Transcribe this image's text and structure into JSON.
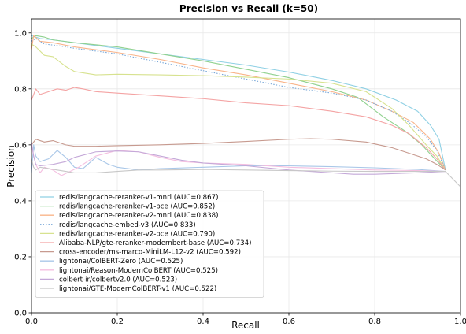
{
  "chart_data": {
    "type": "line",
    "title": "Precision vs Recall (k=50)",
    "xlabel": "Recall",
    "ylabel": "Precision",
    "xlim": [
      0.0,
      1.0
    ],
    "ylim": [
      0.0,
      1.05
    ],
    "xticks": [
      "0.0",
      "0.2",
      "0.4",
      "0.6",
      "0.8",
      "1.0"
    ],
    "yticks": [
      "0.0",
      "0.2",
      "0.4",
      "0.6",
      "0.8",
      "1.0"
    ],
    "grid": true,
    "legend_position": "lower-left",
    "series": [
      {
        "name": "redis/langcache-reranker-v1-mnrl (AUC=0.867)",
        "color": "#8fd0e4",
        "dash": "solid",
        "points": [
          [
            0.0,
            0.99
          ],
          [
            0.02,
            0.98
          ],
          [
            0.05,
            0.975
          ],
          [
            0.1,
            0.965
          ],
          [
            0.2,
            0.945
          ],
          [
            0.3,
            0.925
          ],
          [
            0.4,
            0.905
          ],
          [
            0.5,
            0.885
          ],
          [
            0.6,
            0.86
          ],
          [
            0.7,
            0.83
          ],
          [
            0.78,
            0.8
          ],
          [
            0.85,
            0.76
          ],
          [
            0.9,
            0.72
          ],
          [
            0.93,
            0.67
          ],
          [
            0.95,
            0.62
          ],
          [
            0.965,
            0.51
          ]
        ]
      },
      {
        "name": "redis/langcache-reranker-v1-bce (AUC=0.852)",
        "color": "#90d18f",
        "dash": "solid",
        "points": [
          [
            0.0,
            0.98
          ],
          [
            0.01,
            0.99
          ],
          [
            0.03,
            0.985
          ],
          [
            0.05,
            0.975
          ],
          [
            0.1,
            0.965
          ],
          [
            0.2,
            0.95
          ],
          [
            0.3,
            0.925
          ],
          [
            0.4,
            0.9
          ],
          [
            0.5,
            0.87
          ],
          [
            0.6,
            0.84
          ],
          [
            0.7,
            0.8
          ],
          [
            0.76,
            0.77
          ],
          [
            0.82,
            0.7
          ],
          [
            0.87,
            0.65
          ],
          [
            0.91,
            0.6
          ],
          [
            0.94,
            0.55
          ],
          [
            0.965,
            0.51
          ]
        ]
      },
      {
        "name": "redis/langcache-reranker-v2-mnrl (AUC=0.838)",
        "color": "#f9b48a",
        "dash": "solid",
        "points": [
          [
            0.0,
            0.94
          ],
          [
            0.005,
            0.99
          ],
          [
            0.02,
            0.97
          ],
          [
            0.05,
            0.965
          ],
          [
            0.1,
            0.95
          ],
          [
            0.2,
            0.93
          ],
          [
            0.3,
            0.905
          ],
          [
            0.4,
            0.875
          ],
          [
            0.5,
            0.85
          ],
          [
            0.6,
            0.82
          ],
          [
            0.7,
            0.79
          ],
          [
            0.78,
            0.76
          ],
          [
            0.84,
            0.72
          ],
          [
            0.89,
            0.68
          ],
          [
            0.93,
            0.62
          ],
          [
            0.95,
            0.57
          ],
          [
            0.965,
            0.51
          ]
        ]
      },
      {
        "name": "redis/langcache-embed-v3 (AUC=0.833)",
        "color": "#7aa8d8",
        "dash": "dotted",
        "points": [
          [
            0.0,
            0.97
          ],
          [
            0.01,
            0.98
          ],
          [
            0.03,
            0.96
          ],
          [
            0.06,
            0.955
          ],
          [
            0.1,
            0.945
          ],
          [
            0.2,
            0.925
          ],
          [
            0.3,
            0.895
          ],
          [
            0.4,
            0.865
          ],
          [
            0.5,
            0.835
          ],
          [
            0.6,
            0.805
          ],
          [
            0.7,
            0.785
          ],
          [
            0.78,
            0.76
          ],
          [
            0.84,
            0.72
          ],
          [
            0.88,
            0.68
          ],
          [
            0.92,
            0.63
          ],
          [
            0.945,
            0.58
          ],
          [
            0.965,
            0.51
          ]
        ]
      },
      {
        "name": "redis/langcache-reranker-v2-bce (AUC=0.790)",
        "color": "#d7e28f",
        "dash": "solid",
        "points": [
          [
            0.0,
            0.96
          ],
          [
            0.01,
            0.95
          ],
          [
            0.03,
            0.92
          ],
          [
            0.05,
            0.915
          ],
          [
            0.08,
            0.88
          ],
          [
            0.1,
            0.862
          ],
          [
            0.15,
            0.85
          ],
          [
            0.2,
            0.852
          ],
          [
            0.3,
            0.85
          ],
          [
            0.4,
            0.847
          ],
          [
            0.5,
            0.842
          ],
          [
            0.6,
            0.835
          ],
          [
            0.7,
            0.82
          ],
          [
            0.78,
            0.79
          ],
          [
            0.84,
            0.73
          ],
          [
            0.88,
            0.67
          ],
          [
            0.92,
            0.6
          ],
          [
            0.945,
            0.56
          ],
          [
            0.965,
            0.51
          ]
        ]
      },
      {
        "name": "Alibaba-NLP/gte-reranker-modernbert-base (AUC=0.734)",
        "color": "#f4a3a3",
        "dash": "solid",
        "points": [
          [
            0.0,
            0.76
          ],
          [
            0.01,
            0.8
          ],
          [
            0.02,
            0.78
          ],
          [
            0.04,
            0.79
          ],
          [
            0.06,
            0.8
          ],
          [
            0.08,
            0.795
          ],
          [
            0.1,
            0.805
          ],
          [
            0.12,
            0.8
          ],
          [
            0.15,
            0.79
          ],
          [
            0.2,
            0.785
          ],
          [
            0.3,
            0.775
          ],
          [
            0.4,
            0.765
          ],
          [
            0.5,
            0.75
          ],
          [
            0.6,
            0.74
          ],
          [
            0.7,
            0.72
          ],
          [
            0.78,
            0.7
          ],
          [
            0.84,
            0.67
          ],
          [
            0.88,
            0.64
          ],
          [
            0.92,
            0.59
          ],
          [
            0.945,
            0.55
          ],
          [
            0.965,
            0.51
          ]
        ]
      },
      {
        "name": "cross-encoder/ms-marco-MiniLM-L12-v2 (AUC=0.592)",
        "color": "#c79a8f",
        "dash": "solid",
        "points": [
          [
            0.0,
            0.6
          ],
          [
            0.01,
            0.62
          ],
          [
            0.03,
            0.61
          ],
          [
            0.05,
            0.615
          ],
          [
            0.08,
            0.6
          ],
          [
            0.1,
            0.595
          ],
          [
            0.15,
            0.595
          ],
          [
            0.2,
            0.597
          ],
          [
            0.3,
            0.6
          ],
          [
            0.4,
            0.605
          ],
          [
            0.5,
            0.612
          ],
          [
            0.6,
            0.62
          ],
          [
            0.65,
            0.622
          ],
          [
            0.7,
            0.62
          ],
          [
            0.78,
            0.61
          ],
          [
            0.84,
            0.59
          ],
          [
            0.88,
            0.57
          ],
          [
            0.92,
            0.55
          ],
          [
            0.945,
            0.53
          ],
          [
            0.965,
            0.51
          ]
        ]
      },
      {
        "name": "lightonai/ColBERT-Zero (AUC=0.525)",
        "color": "#a9c7e8",
        "dash": "solid",
        "points": [
          [
            0.0,
            0.5
          ],
          [
            0.005,
            0.6
          ],
          [
            0.01,
            0.56
          ],
          [
            0.02,
            0.54
          ],
          [
            0.04,
            0.55
          ],
          [
            0.06,
            0.58
          ],
          [
            0.08,
            0.555
          ],
          [
            0.1,
            0.52
          ],
          [
            0.12,
            0.515
          ],
          [
            0.15,
            0.555
          ],
          [
            0.18,
            0.53
          ],
          [
            0.2,
            0.52
          ],
          [
            0.25,
            0.51
          ],
          [
            0.3,
            0.515
          ],
          [
            0.4,
            0.52
          ],
          [
            0.5,
            0.525
          ],
          [
            0.6,
            0.525
          ],
          [
            0.7,
            0.522
          ],
          [
            0.8,
            0.518
          ],
          [
            0.9,
            0.512
          ],
          [
            0.965,
            0.505
          ]
        ]
      },
      {
        "name": "lightonai/Reason-ModernColBERT (AUC=0.525)",
        "color": "#f4bfe0",
        "dash": "solid",
        "points": [
          [
            0.0,
            0.6
          ],
          [
            0.005,
            0.56
          ],
          [
            0.01,
            0.53
          ],
          [
            0.02,
            0.5
          ],
          [
            0.03,
            0.52
          ],
          [
            0.05,
            0.51
          ],
          [
            0.07,
            0.49
          ],
          [
            0.09,
            0.505
          ],
          [
            0.11,
            0.52
          ],
          [
            0.15,
            0.56
          ],
          [
            0.2,
            0.58
          ],
          [
            0.25,
            0.575
          ],
          [
            0.3,
            0.555
          ],
          [
            0.35,
            0.54
          ],
          [
            0.4,
            0.535
          ],
          [
            0.5,
            0.53
          ],
          [
            0.6,
            0.52
          ],
          [
            0.7,
            0.515
          ],
          [
            0.8,
            0.51
          ],
          [
            0.9,
            0.508
          ],
          [
            0.965,
            0.505
          ]
        ]
      },
      {
        "name": "colbert-ir/colbertv2.0 (AUC=0.523)",
        "color": "#c4a8d8",
        "dash": "solid",
        "points": [
          [
            0.0,
            0.61
          ],
          [
            0.005,
            0.56
          ],
          [
            0.01,
            0.53
          ],
          [
            0.02,
            0.525
          ],
          [
            0.05,
            0.53
          ],
          [
            0.08,
            0.54
          ],
          [
            0.1,
            0.555
          ],
          [
            0.15,
            0.575
          ],
          [
            0.2,
            0.578
          ],
          [
            0.25,
            0.575
          ],
          [
            0.3,
            0.56
          ],
          [
            0.35,
            0.545
          ],
          [
            0.4,
            0.535
          ],
          [
            0.5,
            0.525
          ],
          [
            0.6,
            0.51
          ],
          [
            0.7,
            0.5
          ],
          [
            0.75,
            0.495
          ],
          [
            0.8,
            0.495
          ],
          [
            0.9,
            0.5
          ],
          [
            0.965,
            0.505
          ]
        ]
      },
      {
        "name": "lightonai/GTE-ModernColBERT-v1 (AUC=0.522)",
        "color": "#c8c8c8",
        "dash": "solid",
        "points": [
          [
            0.0,
            0.55
          ],
          [
            0.005,
            0.52
          ],
          [
            0.01,
            0.51
          ],
          [
            0.02,
            0.52
          ],
          [
            0.04,
            0.515
          ],
          [
            0.06,
            0.51
          ],
          [
            0.08,
            0.505
          ],
          [
            0.1,
            0.5
          ],
          [
            0.15,
            0.5
          ],
          [
            0.2,
            0.505
          ],
          [
            0.25,
            0.51
          ],
          [
            0.3,
            0.51
          ],
          [
            0.4,
            0.512
          ],
          [
            0.5,
            0.51
          ],
          [
            0.6,
            0.508
          ],
          [
            0.7,
            0.506
          ],
          [
            0.8,
            0.505
          ],
          [
            0.9,
            0.505
          ],
          [
            0.965,
            0.505
          ],
          [
            1.0,
            0.45
          ]
        ]
      }
    ]
  }
}
